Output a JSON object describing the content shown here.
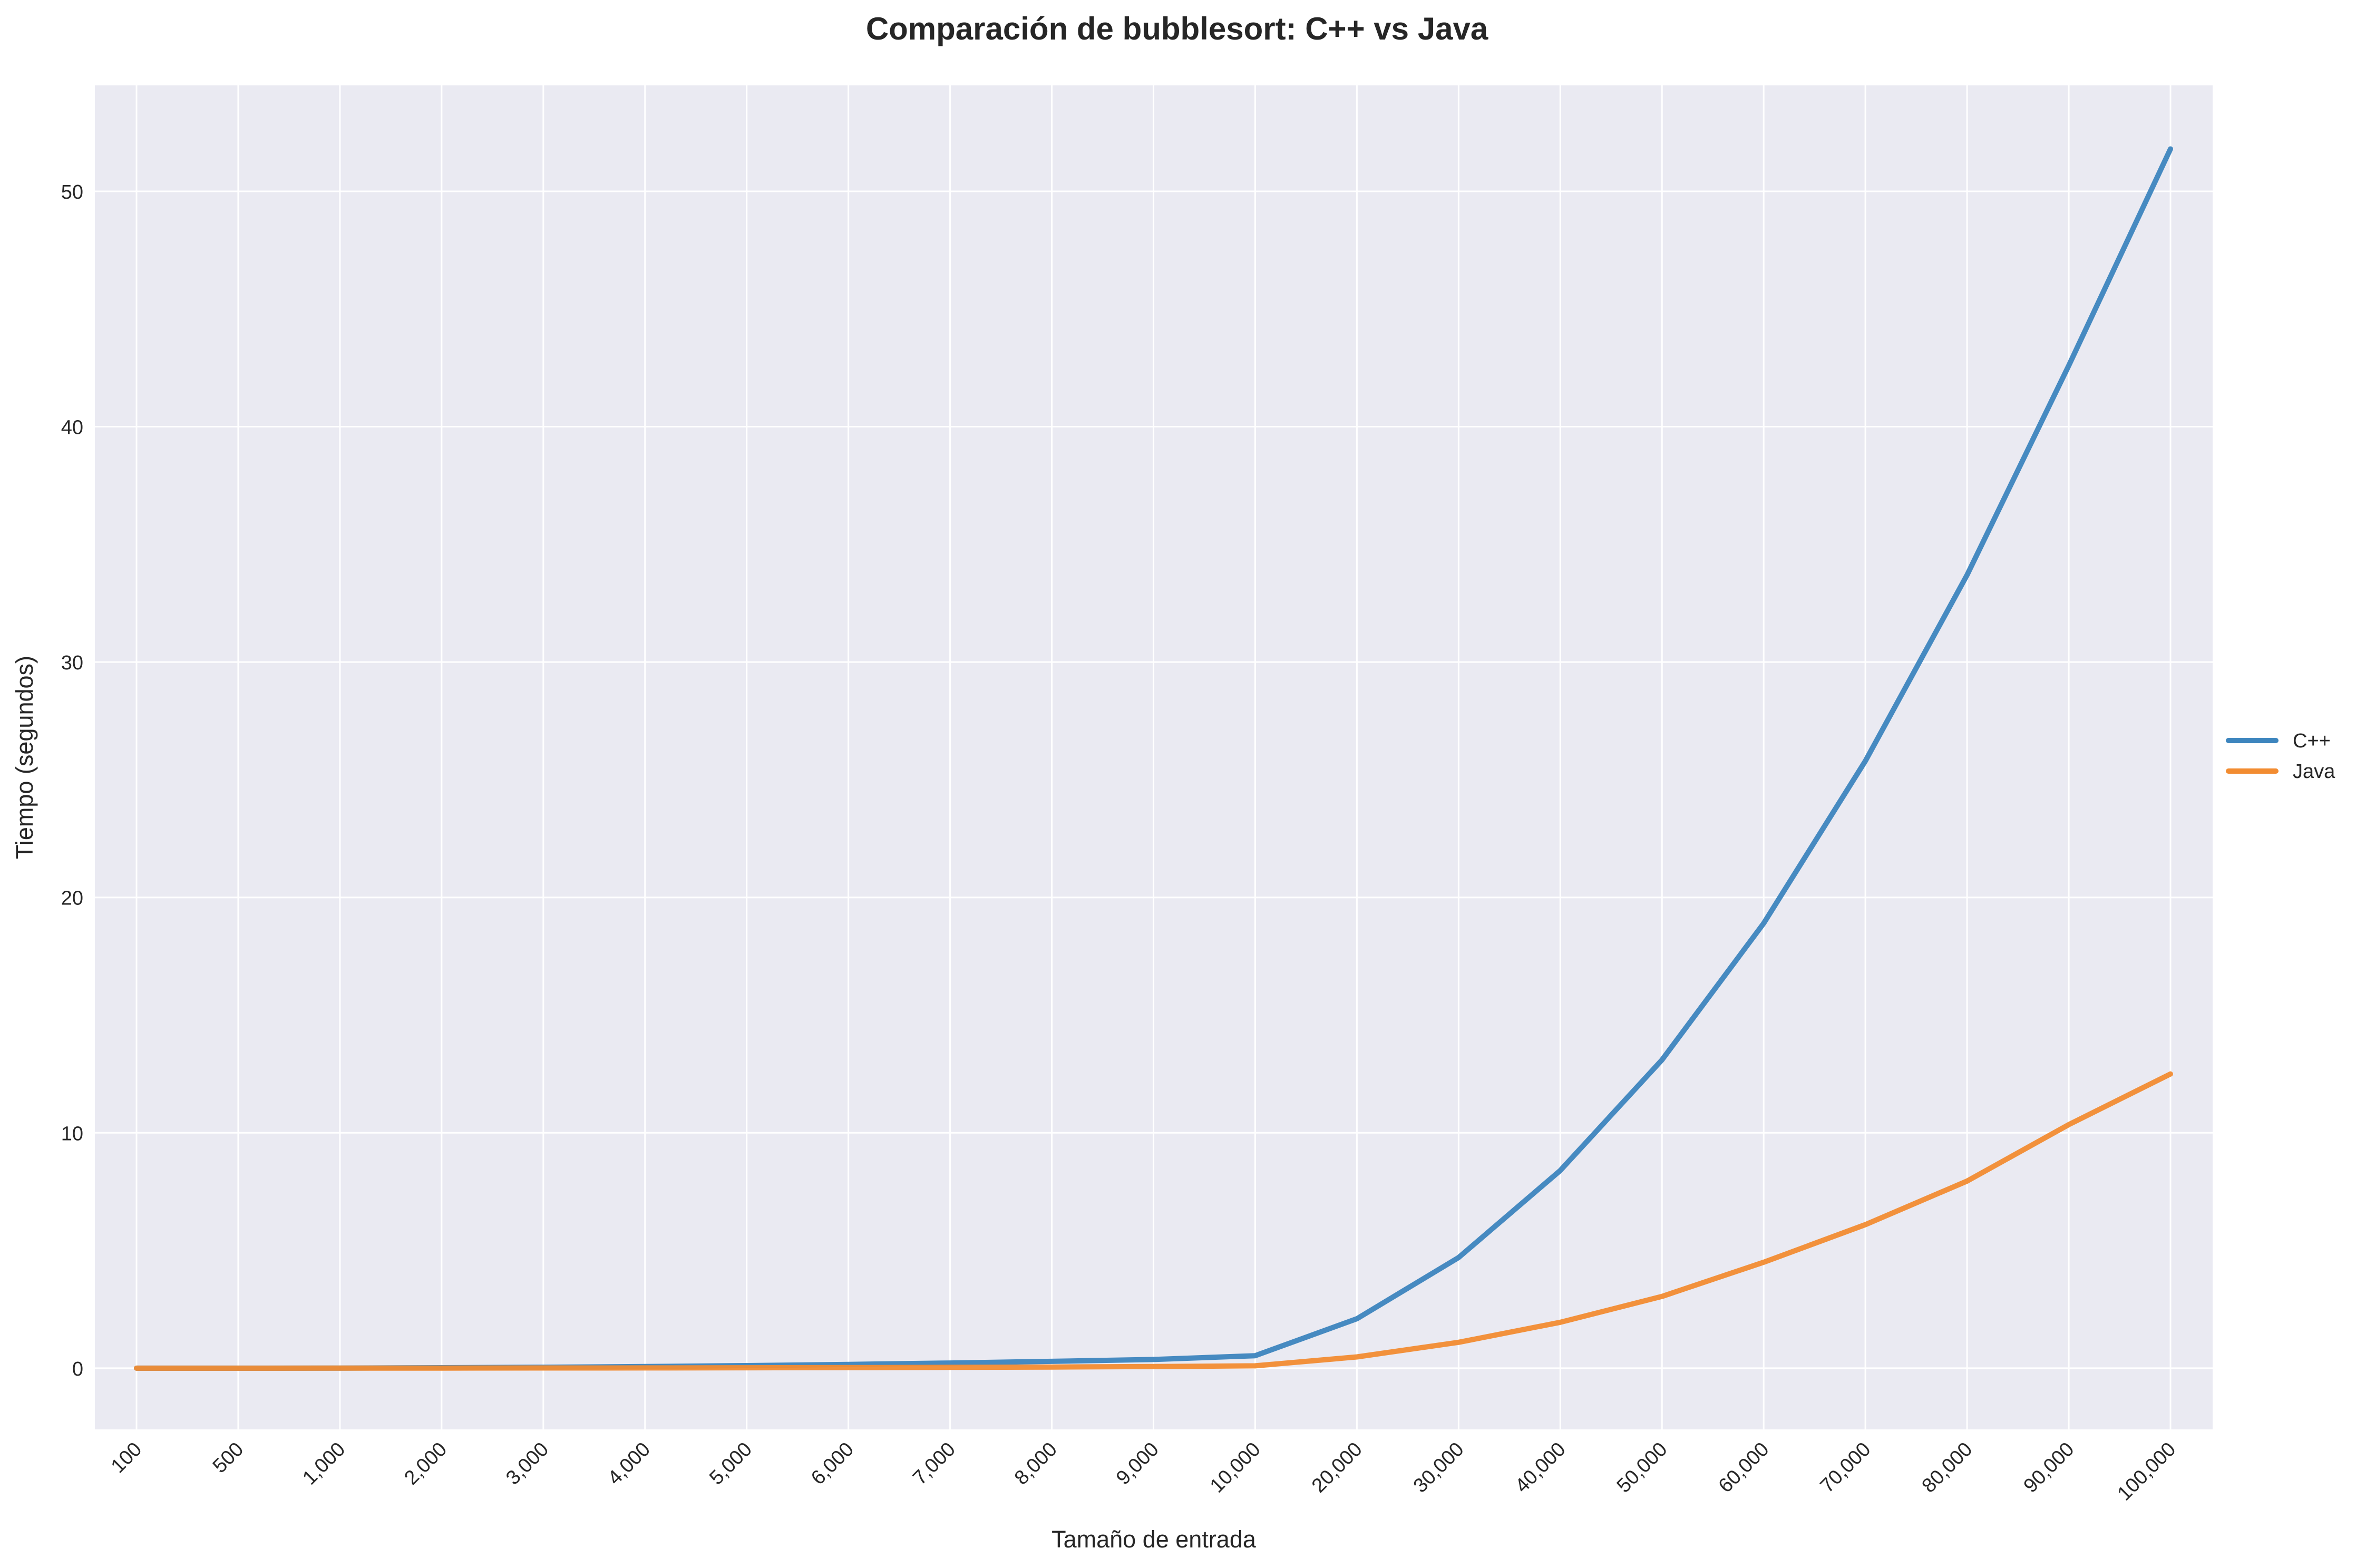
{
  "chart_data": {
    "type": "line",
    "title": "Comparación de bubblesort: C++ vs Java",
    "xlabel": "Tamaño de entrada",
    "ylabel": "Tiempo (segundos)",
    "x_scale": "categorical",
    "categories": [
      "100",
      "500",
      "1,000",
      "2,000",
      "3,000",
      "4,000",
      "5,000",
      "6,000",
      "7,000",
      "8,000",
      "9,000",
      "10,000",
      "20,000",
      "30,000",
      "40,000",
      "50,000",
      "60,000",
      "70,000",
      "80,000",
      "90,000",
      "100,000"
    ],
    "ylim": [
      -2.6,
      54.5
    ],
    "yticks": [
      0,
      10,
      20,
      30,
      40,
      50
    ],
    "grid": true,
    "legend_position": "right, outside plot",
    "series": [
      {
        "name": "C++",
        "color": "#3d85be",
        "values": [
          0.0,
          0.0,
          0.005,
          0.02,
          0.04,
          0.07,
          0.11,
          0.16,
          0.22,
          0.29,
          0.37,
          0.53,
          2.1,
          4.7,
          8.4,
          13.1,
          18.9,
          25.8,
          33.7,
          42.6,
          51.8
        ]
      },
      {
        "name": "Java",
        "color": "#f28c31",
        "values": [
          0.0,
          0.0,
          0.002,
          0.004,
          0.008,
          0.012,
          0.018,
          0.025,
          0.035,
          0.05,
          0.07,
          0.1,
          0.48,
          1.1,
          1.95,
          3.05,
          4.5,
          6.1,
          7.95,
          10.35,
          12.5
        ]
      }
    ]
  }
}
